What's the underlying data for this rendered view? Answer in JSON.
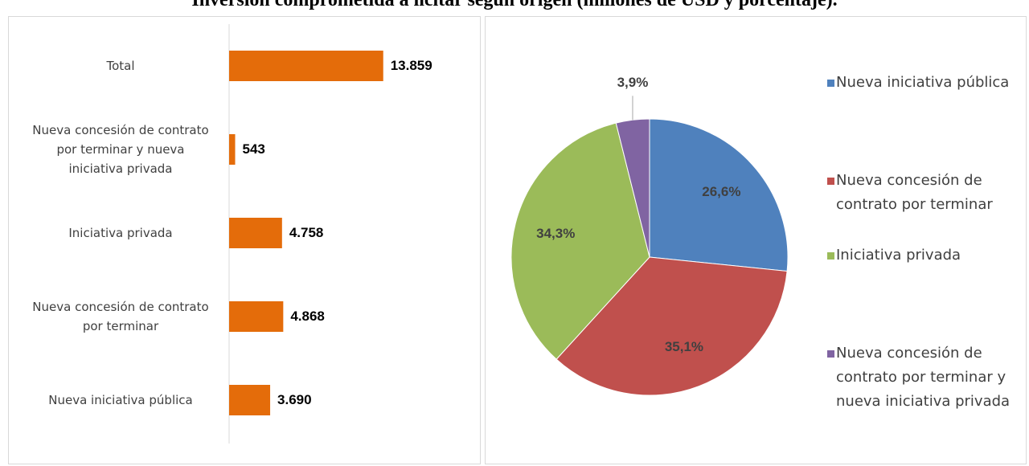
{
  "title": "Inversión comprometida a licitar según origen (millones de USD y porcentaje).",
  "chart_data": [
    {
      "type": "bar",
      "categories": [
        "Total",
        "Nueva concesión de contrato por terminar y nueva iniciativa privada",
        "Iniciativa privada",
        "Nueva concesión de contrato por terminar",
        "Nueva iniciativa pública"
      ],
      "values": [
        13859,
        543,
        4758,
        4868,
        3690
      ],
      "value_labels": [
        "13.859",
        "543",
        "4.758",
        "4.868",
        "3.690"
      ],
      "color": "#e46c0a",
      "xlim": [
        0,
        18000
      ]
    },
    {
      "type": "pie",
      "categories": [
        "Nueva iniciativa pública",
        "Nueva concesión de contrato por terminar",
        "Iniciativa privada",
        "Nueva concesión de contrato por terminar y nueva iniciativa privada"
      ],
      "values": [
        26.6,
        35.1,
        34.3,
        3.9
      ],
      "value_labels": [
        "26,6%",
        "35,1%",
        "34,3%",
        "3,9%"
      ],
      "colors": [
        "#4f81bd",
        "#c0504d",
        "#9bbb59",
        "#8064a2"
      ]
    }
  ]
}
